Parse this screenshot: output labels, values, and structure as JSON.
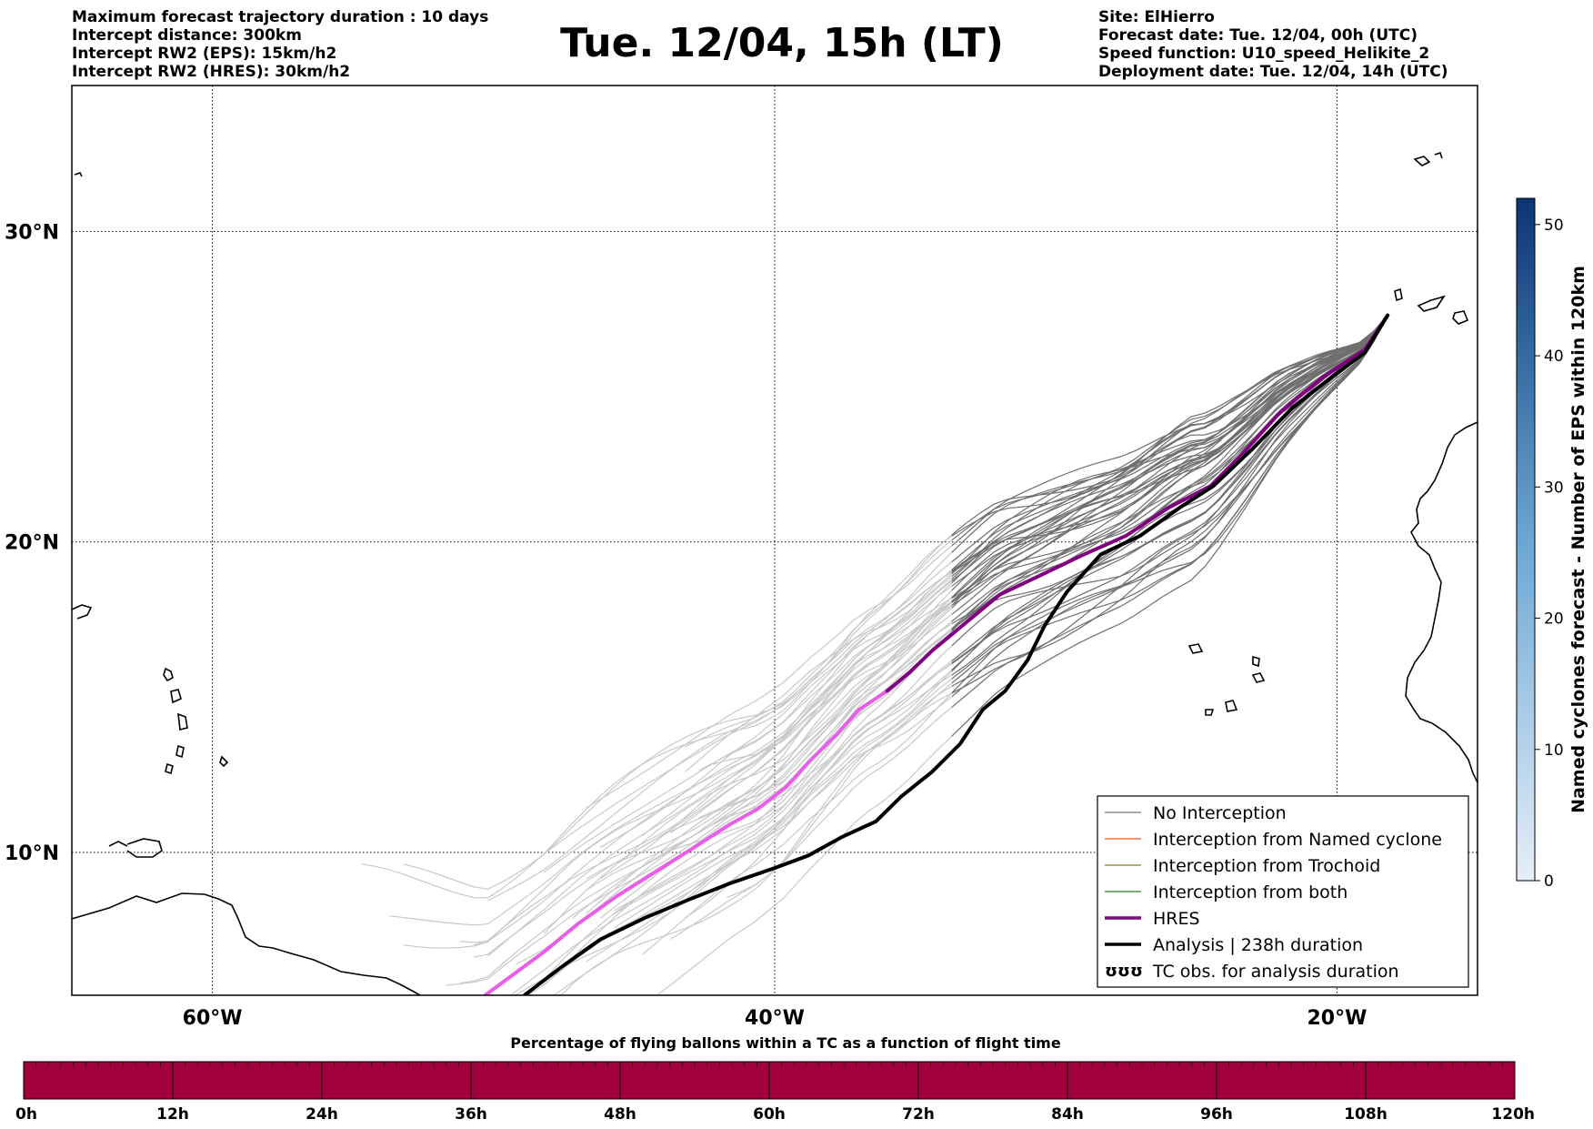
{
  "header": {
    "left_lines": [
      "Maximum forecast trajectory duration : 10 days",
      "Intercept distance: 300km",
      "Intercept RW2 (EPS):  15km/h2",
      "Intercept RW2 (HRES): 30km/h2"
    ],
    "title": "Tue. 12/04, 15h (LT)",
    "right_lines": [
      "Site: ElHierro",
      "Forecast date: Tue. 12/04, 00h (UTC)",
      "Speed function: U10_speed_Helikite_2",
      "Deployment date: Tue. 12/04, 14h (UTC)"
    ]
  },
  "map": {
    "lon_range": [
      -65,
      -15
    ],
    "lat_range": [
      5.4,
      34.7
    ],
    "lat_labels": [
      {
        "value": 30,
        "text": "30°N"
      },
      {
        "value": 20,
        "text": "20°N"
      },
      {
        "value": 10,
        "text": "10°N"
      }
    ],
    "lon_labels": [
      {
        "value": -60,
        "text": "60°W"
      },
      {
        "value": -40,
        "text": "40°W"
      },
      {
        "value": -20,
        "text": "20°W"
      }
    ],
    "hres_track": [
      [
        -18.2,
        27.3
      ],
      [
        -19,
        26.2
      ],
      [
        -20.5,
        25.3
      ],
      [
        -22,
        24.2
      ],
      [
        -23.4,
        22.8
      ],
      [
        -24.5,
        21.8
      ],
      [
        -26,
        21.1
      ],
      [
        -27.5,
        20.2
      ],
      [
        -29,
        19.6
      ],
      [
        -30.6,
        18.9
      ],
      [
        -32,
        18.3
      ],
      [
        -33.2,
        17.4
      ],
      [
        -34.4,
        16.5
      ],
      [
        -35.2,
        15.8
      ],
      [
        -36,
        15.2
      ],
      [
        -37,
        14.6
      ],
      [
        -37.8,
        13.8
      ],
      [
        -38.8,
        12.9
      ],
      [
        -39.6,
        12.1
      ],
      [
        -40.6,
        11.4
      ],
      [
        -41.6,
        10.9
      ],
      [
        -42.8,
        10.2
      ],
      [
        -44.2,
        9.4
      ],
      [
        -45.6,
        8.6
      ],
      [
        -47,
        7.7
      ],
      [
        -48.2,
        6.8
      ],
      [
        -49.4,
        6.0
      ],
      [
        -50.3,
        5.4
      ]
    ],
    "analysis_track": [
      [
        -18.2,
        27.3
      ],
      [
        -19,
        26.1
      ],
      [
        -20.2,
        25.3
      ],
      [
        -21.6,
        24.3
      ],
      [
        -23,
        23
      ],
      [
        -24.4,
        21.8
      ],
      [
        -25.6,
        21.1
      ],
      [
        -27,
        20.2
      ],
      [
        -28.4,
        19.6
      ],
      [
        -29.6,
        18.4
      ],
      [
        -30.4,
        17.3
      ],
      [
        -31,
        16.2
      ],
      [
        -31.8,
        15.2
      ],
      [
        -32.6,
        14.6
      ],
      [
        -33.4,
        13.5
      ],
      [
        -34.4,
        12.6
      ],
      [
        -35.5,
        11.8
      ],
      [
        -36.4,
        11
      ],
      [
        -37.6,
        10.5
      ],
      [
        -38.8,
        9.9
      ],
      [
        -40,
        9.5
      ],
      [
        -41.6,
        9.0
      ],
      [
        -43,
        8.5
      ],
      [
        -44.6,
        7.9
      ],
      [
        -46.2,
        7.2
      ],
      [
        -47.6,
        6.3
      ],
      [
        -48.9,
        5.4
      ]
    ]
  },
  "legend": {
    "items": [
      {
        "label": "No Interception",
        "color": "#777777",
        "width": 1.2
      },
      {
        "label": "Interception from Named cyclone",
        "color": "#e8541e",
        "width": 1.2
      },
      {
        "label": "Interception from Trochoid",
        "color": "#808020",
        "width": 1.2
      },
      {
        "label": "Interception from both",
        "color": "#228b22",
        "width": 1.2
      },
      {
        "label": "HRES",
        "color": "#800080",
        "width": 3.5
      },
      {
        "label": "Analysis | 238h duration",
        "color": "#000000",
        "width": 3.5
      },
      {
        "label": "TC obs. for analysis duration",
        "color": "#000000",
        "width": 0,
        "icon": "ʊʊʊ"
      }
    ]
  },
  "colorbar_right": {
    "label": "Named cyclones forecast - Number of EPS within 120km",
    "ticks": [
      0,
      10,
      20,
      30,
      40,
      50
    ],
    "range": [
      0,
      52
    ],
    "color_low": "#e6eef8",
    "color_high": "#0b3572"
  },
  "colorbar_bottom": {
    "title": "Percentage of flying ballons within a TC as a function of flight time",
    "ticks": [
      "0h",
      "12h",
      "24h",
      "36h",
      "48h",
      "60h",
      "72h",
      "84h",
      "96h",
      "108h",
      "120h"
    ],
    "fill_color": "#a0003c"
  },
  "colors": {
    "eps_grey": "#6f6f6f",
    "eps_light": "#c9c9c9",
    "hres_dark": "#800080",
    "hres_light": "#e85ee8"
  }
}
